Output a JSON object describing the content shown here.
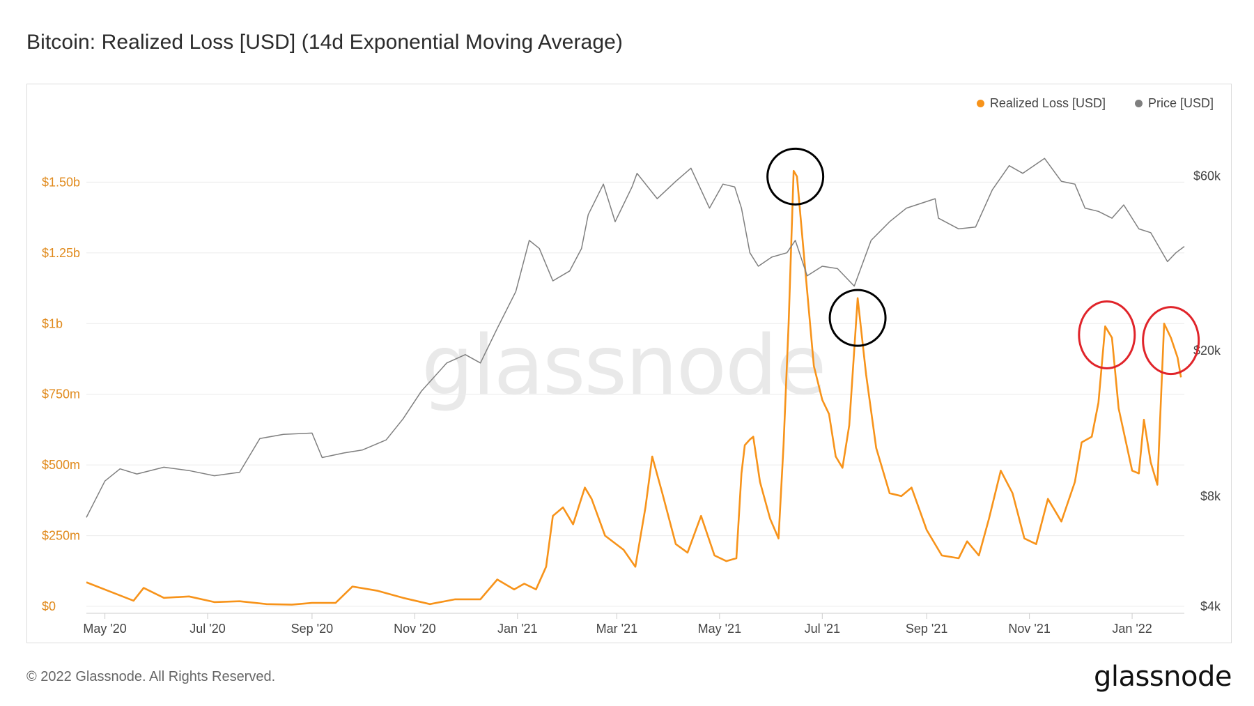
{
  "page": {
    "title": "Bitcoin: Realized Loss [USD] (14d Exponential Moving Average)",
    "footer": "© 2022 Glassnode. All Rights Reserved.",
    "brand": "glassnode",
    "watermark": "glassnode"
  },
  "legend": [
    {
      "label": "Realized Loss [USD]",
      "color": "#f7931a"
    },
    {
      "label": "Price [USD]",
      "color": "#7f7f7f"
    }
  ],
  "chart_data": {
    "type": "line",
    "x_axis": {
      "ticks": [
        "May '20",
        "Jul '20",
        "Sep '20",
        "Nov '20",
        "Jan '21",
        "Mar '21",
        "May '21",
        "Jul '21",
        "Sep '21",
        "Nov '21",
        "Jan '22"
      ],
      "tick_dates": [
        "2020-05-01",
        "2020-07-01",
        "2020-09-01",
        "2020-11-01",
        "2021-01-01",
        "2021-03-01",
        "2021-05-01",
        "2021-07-01",
        "2021-09-01",
        "2021-11-01",
        "2022-01-01"
      ],
      "range": [
        "2020-04-20",
        "2022-02-01"
      ]
    },
    "y_left": {
      "ticks": [
        "$0",
        "$250m",
        "$500m",
        "$750m",
        "$1b",
        "$1.25b",
        "$1.50b"
      ],
      "values": [
        0,
        250000000,
        500000000,
        750000000,
        1000000000,
        1250000000,
        1500000000
      ],
      "range": [
        0,
        1750000000
      ],
      "color": "#e08a1c"
    },
    "y_right": {
      "scale": "log",
      "ticks": [
        "$4k",
        "$8k",
        "$20k",
        "$60k"
      ],
      "values": [
        4000,
        8000,
        20000,
        60000
      ],
      "range": [
        4000,
        90000
      ],
      "color": "#444444"
    },
    "grid": true,
    "legend_position": "top-right",
    "series": [
      {
        "name": "Realized Loss [USD]",
        "axis": "left",
        "color": "#f7931a",
        "points": [
          [
            "2020-04-20",
            85000000
          ],
          [
            "2020-05-05",
            50000000
          ],
          [
            "2020-05-18",
            20000000
          ],
          [
            "2020-05-24",
            65000000
          ],
          [
            "2020-06-05",
            30000000
          ],
          [
            "2020-06-20",
            35000000
          ],
          [
            "2020-07-05",
            15000000
          ],
          [
            "2020-07-20",
            18000000
          ],
          [
            "2020-08-05",
            8000000
          ],
          [
            "2020-08-20",
            6000000
          ],
          [
            "2020-09-01",
            12000000
          ],
          [
            "2020-09-15",
            12000000
          ],
          [
            "2020-09-25",
            70000000
          ],
          [
            "2020-10-10",
            55000000
          ],
          [
            "2020-10-25",
            30000000
          ],
          [
            "2020-11-10",
            8000000
          ],
          [
            "2020-11-25",
            25000000
          ],
          [
            "2020-12-10",
            25000000
          ],
          [
            "2020-12-20",
            95000000
          ],
          [
            "2020-12-30",
            60000000
          ],
          [
            "2021-01-05",
            80000000
          ],
          [
            "2021-01-12",
            60000000
          ],
          [
            "2021-01-18",
            140000000
          ],
          [
            "2021-01-22",
            320000000
          ],
          [
            "2021-01-28",
            350000000
          ],
          [
            "2021-02-03",
            290000000
          ],
          [
            "2021-02-10",
            420000000
          ],
          [
            "2021-02-14",
            380000000
          ],
          [
            "2021-02-22",
            250000000
          ],
          [
            "2021-03-05",
            200000000
          ],
          [
            "2021-03-12",
            140000000
          ],
          [
            "2021-03-18",
            350000000
          ],
          [
            "2021-03-22",
            530000000
          ],
          [
            "2021-03-28",
            400000000
          ],
          [
            "2021-04-05",
            220000000
          ],
          [
            "2021-04-12",
            190000000
          ],
          [
            "2021-04-20",
            320000000
          ],
          [
            "2021-04-28",
            180000000
          ],
          [
            "2021-05-05",
            160000000
          ],
          [
            "2021-05-11",
            170000000
          ],
          [
            "2021-05-14",
            470000000
          ],
          [
            "2021-05-16",
            570000000
          ],
          [
            "2021-05-19",
            590000000
          ],
          [
            "2021-05-21",
            600000000
          ],
          [
            "2021-05-25",
            440000000
          ],
          [
            "2021-05-31",
            310000000
          ],
          [
            "2021-06-05",
            240000000
          ],
          [
            "2021-06-08",
            570000000
          ],
          [
            "2021-06-11",
            1000000000
          ],
          [
            "2021-06-14",
            1540000000
          ],
          [
            "2021-06-16",
            1520000000
          ],
          [
            "2021-06-20",
            1250000000
          ],
          [
            "2021-06-26",
            850000000
          ],
          [
            "2021-07-01",
            730000000
          ],
          [
            "2021-07-05",
            680000000
          ],
          [
            "2021-07-09",
            530000000
          ],
          [
            "2021-07-13",
            490000000
          ],
          [
            "2021-07-17",
            640000000
          ],
          [
            "2021-07-22",
            1090000000
          ],
          [
            "2021-07-27",
            820000000
          ],
          [
            "2021-08-02",
            560000000
          ],
          [
            "2021-08-10",
            400000000
          ],
          [
            "2021-08-17",
            390000000
          ],
          [
            "2021-08-23",
            420000000
          ],
          [
            "2021-09-01",
            270000000
          ],
          [
            "2021-09-10",
            180000000
          ],
          [
            "2021-09-20",
            170000000
          ],
          [
            "2021-09-25",
            230000000
          ],
          [
            "2021-10-02",
            180000000
          ],
          [
            "2021-10-08",
            310000000
          ],
          [
            "2021-10-15",
            480000000
          ],
          [
            "2021-10-22",
            400000000
          ],
          [
            "2021-10-29",
            240000000
          ],
          [
            "2021-11-05",
            220000000
          ],
          [
            "2021-11-12",
            380000000
          ],
          [
            "2021-11-20",
            300000000
          ],
          [
            "2021-11-28",
            440000000
          ],
          [
            "2021-12-02",
            580000000
          ],
          [
            "2021-12-08",
            600000000
          ],
          [
            "2021-12-12",
            720000000
          ],
          [
            "2021-12-16",
            990000000
          ],
          [
            "2021-12-20",
            950000000
          ],
          [
            "2021-12-24",
            700000000
          ],
          [
            "2022-01-01",
            480000000
          ],
          [
            "2022-01-05",
            470000000
          ],
          [
            "2022-01-08",
            660000000
          ],
          [
            "2022-01-12",
            510000000
          ],
          [
            "2022-01-16",
            430000000
          ],
          [
            "2022-01-20",
            1000000000
          ],
          [
            "2022-01-24",
            950000000
          ],
          [
            "2022-01-28",
            880000000
          ],
          [
            "2022-01-30",
            810000000
          ]
        ]
      },
      {
        "name": "Price [USD]",
        "axis": "right",
        "color": "#7f7f7f",
        "points": [
          [
            "2020-04-20",
            7000
          ],
          [
            "2020-05-01",
            8800
          ],
          [
            "2020-05-10",
            9500
          ],
          [
            "2020-05-20",
            9200
          ],
          [
            "2020-06-05",
            9600
          ],
          [
            "2020-06-20",
            9400
          ],
          [
            "2020-07-05",
            9100
          ],
          [
            "2020-07-20",
            9300
          ],
          [
            "2020-08-01",
            11500
          ],
          [
            "2020-08-15",
            11800
          ],
          [
            "2020-09-01",
            11900
          ],
          [
            "2020-09-07",
            10200
          ],
          [
            "2020-09-20",
            10500
          ],
          [
            "2020-10-01",
            10700
          ],
          [
            "2020-10-15",
            11400
          ],
          [
            "2020-10-25",
            13000
          ],
          [
            "2020-11-05",
            15500
          ],
          [
            "2020-11-20",
            18500
          ],
          [
            "2020-12-01",
            19500
          ],
          [
            "2020-12-10",
            18500
          ],
          [
            "2020-12-20",
            23000
          ],
          [
            "2020-12-31",
            29000
          ],
          [
            "2021-01-08",
            40000
          ],
          [
            "2021-01-14",
            38000
          ],
          [
            "2021-01-22",
            31000
          ],
          [
            "2021-02-01",
            33000
          ],
          [
            "2021-02-08",
            38000
          ],
          [
            "2021-02-12",
            47000
          ],
          [
            "2021-02-21",
            57000
          ],
          [
            "2021-02-28",
            45000
          ],
          [
            "2021-03-10",
            56000
          ],
          [
            "2021-03-13",
            61000
          ],
          [
            "2021-03-25",
            52000
          ],
          [
            "2021-04-05",
            58000
          ],
          [
            "2021-04-14",
            63000
          ],
          [
            "2021-04-25",
            49000
          ],
          [
            "2021-05-03",
            57000
          ],
          [
            "2021-05-10",
            56000
          ],
          [
            "2021-05-14",
            49000
          ],
          [
            "2021-05-19",
            37000
          ],
          [
            "2021-05-24",
            34000
          ],
          [
            "2021-06-01",
            36000
          ],
          [
            "2021-06-10",
            37000
          ],
          [
            "2021-06-15",
            40000
          ],
          [
            "2021-06-22",
            32000
          ],
          [
            "2021-07-01",
            34000
          ],
          [
            "2021-07-10",
            33500
          ],
          [
            "2021-07-20",
            30000
          ],
          [
            "2021-07-30",
            40000
          ],
          [
            "2021-08-10",
            45000
          ],
          [
            "2021-08-20",
            49000
          ],
          [
            "2021-09-06",
            52000
          ],
          [
            "2021-09-08",
            46000
          ],
          [
            "2021-09-20",
            43000
          ],
          [
            "2021-09-30",
            43500
          ],
          [
            "2021-10-10",
            55000
          ],
          [
            "2021-10-20",
            64000
          ],
          [
            "2021-10-28",
            61000
          ],
          [
            "2021-11-10",
            67000
          ],
          [
            "2021-11-20",
            58000
          ],
          [
            "2021-11-28",
            57000
          ],
          [
            "2021-12-04",
            49000
          ],
          [
            "2021-12-12",
            48000
          ],
          [
            "2021-12-20",
            46000
          ],
          [
            "2021-12-27",
            50000
          ],
          [
            "2022-01-05",
            43000
          ],
          [
            "2022-01-12",
            42000
          ],
          [
            "2022-01-22",
            35000
          ],
          [
            "2022-01-27",
            37000
          ],
          [
            "2022-02-01",
            38500
          ]
        ]
      }
    ],
    "annotations": [
      {
        "shape": "circle",
        "color": "#000000",
        "date": "2021-06-15",
        "value": 1520000000
      },
      {
        "shape": "circle",
        "color": "#000000",
        "date": "2021-07-22",
        "value": 1020000000
      },
      {
        "shape": "circle",
        "color": "#e0242a",
        "date": "2021-12-17",
        "value": 960000000
      },
      {
        "shape": "circle",
        "color": "#e0242a",
        "date": "2022-01-24",
        "value": 940000000
      }
    ]
  }
}
